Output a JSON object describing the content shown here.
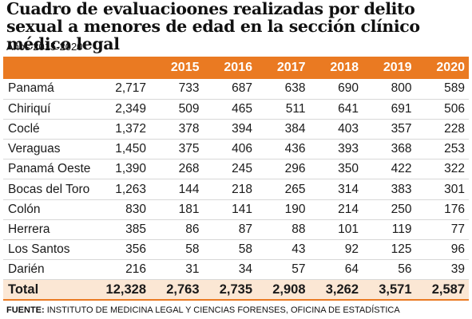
{
  "title": "Cuadro de evaluacioones realizadas por delito sexual a menores de edad en la sección clínico médico legal",
  "subtitle": "Años 2015-2020",
  "table": {
    "headers": [
      "",
      "",
      "2015",
      "2016",
      "2017",
      "2018",
      "2019",
      "2020"
    ],
    "rows": [
      [
        "Panamá",
        "2,717",
        "733",
        "687",
        "638",
        "690",
        "800",
        "589"
      ],
      [
        "Chiriquí",
        "2,349",
        "509",
        "465",
        "511",
        "641",
        "691",
        "506"
      ],
      [
        "Coclé",
        "1,372",
        "378",
        "394",
        "384",
        "403",
        "357",
        "228"
      ],
      [
        "Veraguas",
        "1,450",
        "375",
        "406",
        "436",
        "393",
        "368",
        "253"
      ],
      [
        "Panamá Oeste",
        "1,390",
        "268",
        "245",
        "296",
        "350",
        "422",
        "322"
      ],
      [
        "Bocas del Toro",
        "1,263",
        "144",
        "218",
        "265",
        "314",
        "383",
        "301"
      ],
      [
        "Colón",
        "830",
        "181",
        "141",
        "190",
        "214",
        "250",
        "176"
      ],
      [
        "Herrera",
        "385",
        "86",
        "87",
        "88",
        "101",
        "119",
        "77"
      ],
      [
        "Los Santos",
        "356",
        "58",
        "58",
        "43",
        "92",
        "125",
        "96"
      ],
      [
        "Darién",
        "216",
        "31",
        "34",
        "57",
        "64",
        "56",
        "39"
      ]
    ],
    "total": [
      "Total",
      "12,328",
      "2,763",
      "2,735",
      "2,908",
      "3,262",
      "3,571",
      "2,587"
    ]
  },
  "source": {
    "label": "FUENTE:",
    "text": " INSTITUTO DE MEDICINA LEGAL Y CIENCIAS FORENSES, OFICINA DE ESTADÍSTICA"
  },
  "colors": {
    "header_bg": "#ea7a22",
    "total_bg": "#fbe7d4"
  }
}
